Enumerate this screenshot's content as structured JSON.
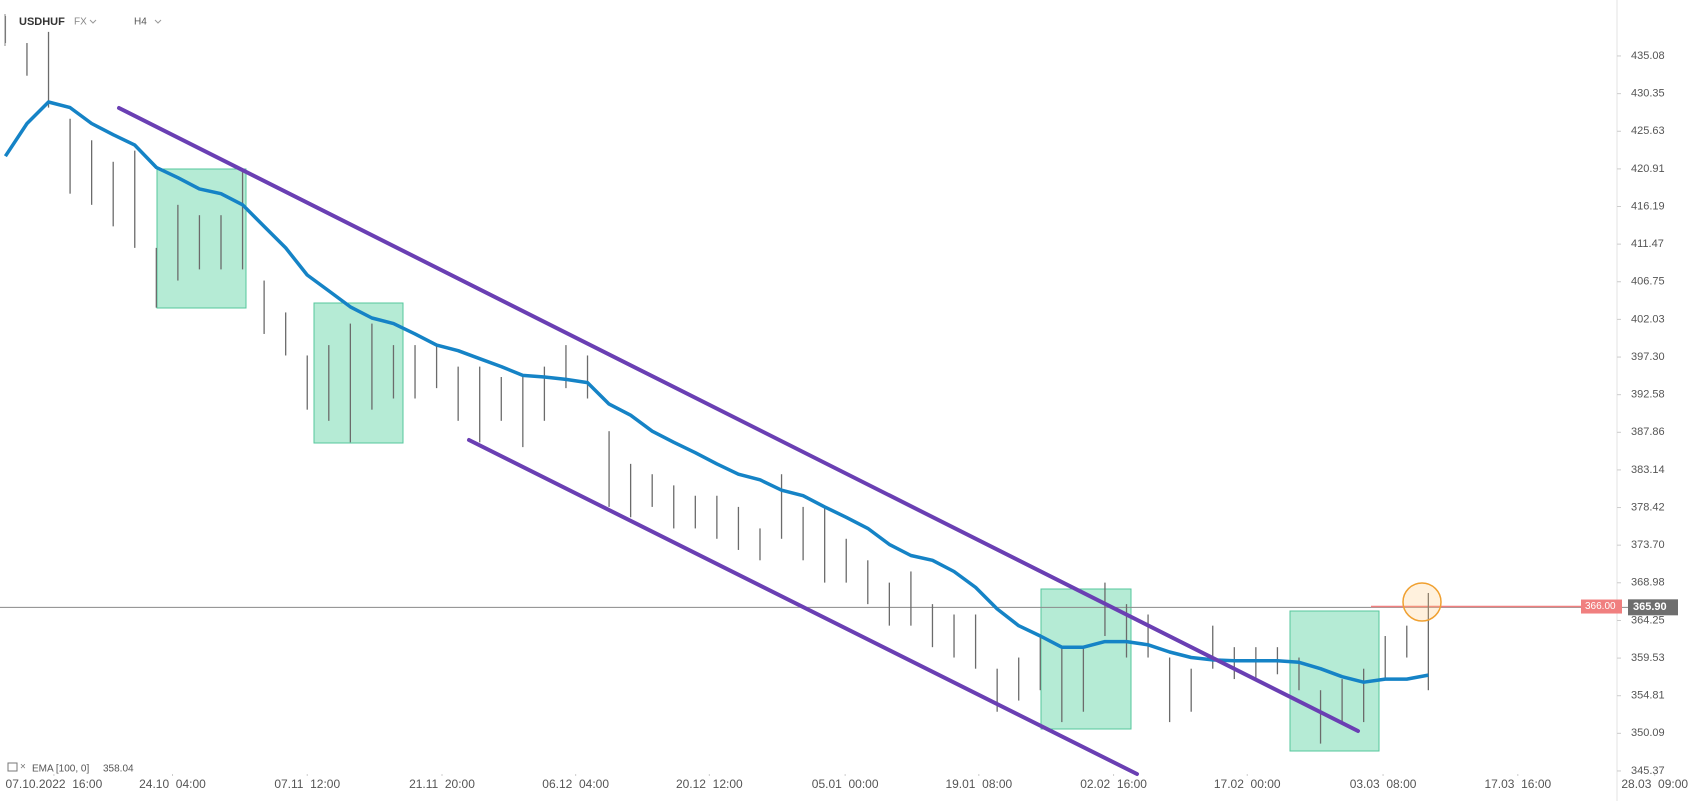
{
  "chart_data": {
    "type": "ohlc",
    "symbol": "USDHUF",
    "market": "FX",
    "timeframe": "H4",
    "high": [
      440.1,
      436.7,
      438.1,
      427.2,
      424.5,
      421.8,
      423.2,
      411.0,
      416.4,
      415.1,
      415.1,
      420.5,
      406.9,
      402.9,
      397.5,
      398.8,
      401.5,
      401.5,
      398.8,
      398.8,
      398.8,
      396.1,
      396.1,
      394.8,
      394.8,
      396.1,
      398.8,
      397.5,
      388.0,
      383.9,
      382.6,
      381.2,
      379.9,
      379.9,
      378.5,
      375.8,
      382.6,
      378.5,
      378.5,
      374.5,
      371.8,
      369.0,
      370.4,
      366.3,
      365.0,
      365.0,
      358.2,
      359.6,
      362.3,
      360.9,
      360.9,
      369.0,
      366.3,
      365.0,
      359.6,
      358.2,
      363.6,
      360.9,
      360.9,
      360.9,
      359.6,
      355.5,
      356.9,
      358.2,
      362.3,
      363.6,
      367.7
    ],
    "low": [
      436.7,
      432.6,
      428.6,
      417.8,
      416.4,
      413.7,
      411.0,
      403.5,
      406.9,
      408.3,
      408.3,
      408.3,
      400.2,
      397.5,
      390.7,
      389.3,
      386.6,
      390.7,
      392.1,
      392.1,
      393.4,
      389.3,
      386.6,
      389.3,
      386.0,
      389.3,
      393.4,
      392.1,
      378.5,
      377.2,
      378.5,
      375.8,
      375.8,
      374.5,
      373.1,
      371.8,
      374.5,
      371.8,
      369.0,
      369.0,
      366.3,
      363.6,
      363.6,
      360.9,
      359.6,
      358.2,
      352.8,
      354.2,
      355.5,
      351.5,
      352.8,
      362.3,
      359.6,
      359.6,
      351.5,
      352.8,
      358.2,
      356.9,
      356.9,
      357.5,
      355.5,
      348.8,
      351.5,
      351.5,
      356.9,
      359.6,
      355.5
    ],
    "bar_color": "#6b6b6b",
    "ema": {
      "name": "EMA [100, 0]",
      "last_value": "358.04",
      "color": "#1583c6",
      "values": [
        422.5,
        426.6,
        429.3,
        428.6,
        426.6,
        425.2,
        423.9,
        421.1,
        419.8,
        418.4,
        417.8,
        416.4,
        413.7,
        411.0,
        407.6,
        405.6,
        403.6,
        402.2,
        401.5,
        400.2,
        398.8,
        398.1,
        397.1,
        396.1,
        395.0,
        394.8,
        394.5,
        394.1,
        391.4,
        390.0,
        388.0,
        386.6,
        385.3,
        383.9,
        382.6,
        381.9,
        380.6,
        379.9,
        378.5,
        377.2,
        375.8,
        373.8,
        372.4,
        371.8,
        370.4,
        368.4,
        365.7,
        363.6,
        362.3,
        360.9,
        360.9,
        361.6,
        361.6,
        361.2,
        360.3,
        359.6,
        359.3,
        359.2,
        359.2,
        359.2,
        359.0,
        358.2,
        357.2,
        356.5,
        356.9,
        356.9,
        357.4
      ]
    },
    "last_price": {
      "value": 365.9,
      "label": "365.90"
    },
    "alert_price": {
      "value": 366,
      "label": "366.00"
    },
    "ylim": [
      341.6,
      442.1
    ],
    "yticks": [
      435.08,
      430.35,
      425.63,
      420.91,
      416.19,
      411.47,
      406.75,
      402.03,
      {
        "value": 397.3,
        "label": "397.30"
      },
      392.58,
      387.86,
      383.14,
      378.42,
      {
        "value": 373.7,
        "label": "373.70"
      },
      368.98,
      364.25,
      359.53,
      354.81,
      350.09,
      345.37
    ],
    "xlim": [
      0,
      77
    ],
    "xticks": [
      {
        "value": 2.25,
        "label": "07.10.2022  16:00"
      },
      {
        "value": 7.75,
        "label": "24.10  04:00"
      },
      {
        "value": 14,
        "label": "07.11  12:00"
      },
      {
        "value": 20.25,
        "label": "21.11  20:00"
      },
      {
        "value": 26.45,
        "label": "06.12  04:00"
      },
      {
        "value": 32.65,
        "label": "20.12  12:00"
      },
      {
        "value": 38.95,
        "label": "05.01  00:00"
      },
      {
        "value": 45.15,
        "label": "19.01  08:00"
      },
      {
        "value": 51.4,
        "label": "02.02  16:00"
      },
      {
        "value": 57.6,
        "label": "17.02  00:00"
      },
      {
        "value": 63.9,
        "label": "03.03  08:00"
      },
      {
        "value": 70.15,
        "label": "17.03  16:00"
      },
      {
        "value": 76.5,
        "label": "28.03  09:00"
      }
    ]
  }
}
